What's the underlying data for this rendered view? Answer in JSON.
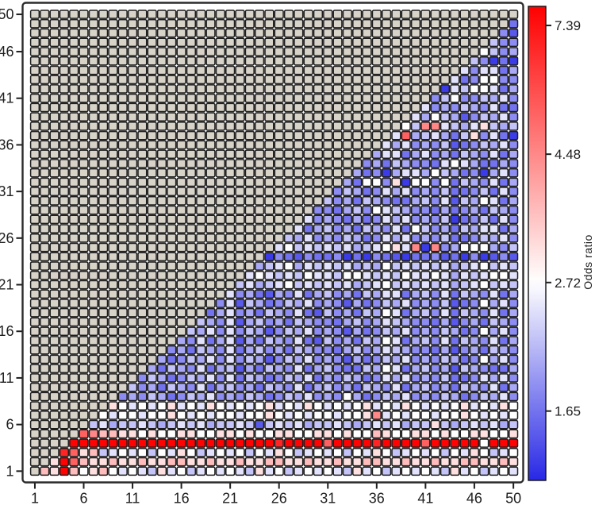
{
  "chart_data": {
    "type": "heatmap",
    "title": "",
    "xlabel": "",
    "ylabel": "",
    "colorbar_label": "Odds ratio",
    "grid_size": 50,
    "na_rule": "col<=row",
    "x_ticks": [
      1,
      6,
      11,
      16,
      21,
      26,
      31,
      36,
      41,
      46,
      50
    ],
    "y_ticks": [
      1,
      6,
      11,
      16,
      21,
      26,
      31,
      36,
      41,
      46,
      50
    ],
    "colorbar_ticks": [
      "7.39",
      "4.48",
      "2.72",
      "1.65"
    ],
    "colorbar_tick_values": [
      7.39,
      4.48,
      2.72,
      1.65
    ],
    "scale": "log",
    "center_value": 2.72,
    "vmin": 1.26,
    "vmax": 7.96,
    "colors": {
      "na_fill": "#d7d3c9",
      "cell_border": "#1e1e1e",
      "plot_border": "#2b2b2b",
      "low": "#2828e6",
      "mid": "#ffffff",
      "high": "#ff0000",
      "tick_label": "#1f1f1f"
    },
    "levels": {
      "a": 1.35,
      "b": 1.5,
      "c": 1.65,
      "d": 1.8,
      "e": 2.0,
      "f": 2.2,
      "g": 2.45,
      "h": 2.72,
      "i": 3.1,
      "j": 3.6,
      "k": 4.5,
      "l": 5.3,
      "m": 6.8,
      "n": 7.9
    },
    "textures": {
      "B1": "edfecdfegd",
      "B2": "fdecfedgce",
      "B3": "dcefdecfed",
      "L1": "hgfighfghg",
      "P": "ijiijjiiji",
      "L2": "ghfhgihfgh",
      "R": "nnnnnnnnnn",
      "P5": "ihihhiihhi",
      "F": "fgfefgfgef",
      "W": "hghhihghgh",
      "W2": "ghghighgih",
      "S": "cdbcadcbdc",
      "K": "gfgefghfgf",
      "K2": "gfghgfgfhg"
    },
    "row_textures": [
      "L1",
      "P",
      "L2",
      "R",
      "P5",
      "F",
      "W",
      "W2",
      "B1",
      "B2",
      "B1",
      "B2",
      "B1",
      "B3",
      "B2",
      "B1",
      "B3",
      "B2",
      "B1",
      "B2",
      "K",
      "K2",
      "K",
      "S",
      "K",
      "B1",
      "B2",
      "B1",
      "B3",
      "B2",
      "B1",
      "B2",
      "B1",
      "B3",
      "B2",
      "B1",
      "B2",
      "K",
      "B1",
      "B2",
      "B1",
      "B2",
      "B1",
      "B2",
      "B1",
      "K",
      "B1",
      "B2",
      "B1",
      "B1"
    ],
    "overrides": [
      [
        1,
        2,
        "j"
      ],
      [
        1,
        3,
        "i"
      ],
      [
        1,
        4,
        "n"
      ],
      [
        1,
        5,
        "j"
      ],
      [
        1,
        7,
        "i"
      ],
      [
        1,
        8,
        "j"
      ],
      [
        2,
        4,
        "n"
      ],
      [
        2,
        5,
        "l"
      ],
      [
        3,
        4,
        "m"
      ],
      [
        3,
        5,
        "l"
      ],
      [
        3,
        7,
        "j"
      ],
      [
        4,
        26,
        "m"
      ],
      [
        4,
        31,
        "l"
      ],
      [
        4,
        36,
        "m"
      ],
      [
        4,
        41,
        "l"
      ],
      [
        4,
        47,
        "h"
      ],
      [
        5,
        6,
        "l"
      ],
      [
        5,
        7,
        "k"
      ],
      [
        5,
        8,
        "j"
      ],
      [
        5,
        9,
        "j"
      ],
      [
        5,
        36,
        "j"
      ],
      [
        6,
        24,
        "b"
      ],
      [
        6,
        42,
        "i"
      ],
      [
        7,
        36,
        "k"
      ],
      [
        9,
        33,
        "h"
      ],
      [
        11,
        21,
        "g"
      ],
      [
        11,
        22,
        "c"
      ],
      [
        11,
        30,
        "c"
      ],
      [
        11,
        37,
        "g"
      ],
      [
        11,
        44,
        "c"
      ],
      [
        11,
        47,
        "g"
      ],
      [
        12,
        22,
        "b"
      ],
      [
        12,
        33,
        "c"
      ],
      [
        12,
        37,
        "h"
      ],
      [
        12,
        44,
        "b"
      ],
      [
        12,
        48,
        "c"
      ],
      [
        13,
        21,
        "g"
      ],
      [
        13,
        25,
        "b"
      ],
      [
        13,
        33,
        "b"
      ],
      [
        13,
        47,
        "h"
      ],
      [
        14,
        21,
        "g"
      ],
      [
        14,
        37,
        "g"
      ],
      [
        14,
        44,
        "b"
      ],
      [
        15,
        21,
        "g"
      ],
      [
        15,
        22,
        "b"
      ],
      [
        15,
        30,
        "b"
      ],
      [
        15,
        37,
        "h"
      ],
      [
        15,
        43,
        "g"
      ],
      [
        16,
        21,
        "g"
      ],
      [
        16,
        25,
        "b"
      ],
      [
        16,
        33,
        "b"
      ],
      [
        16,
        47,
        "h"
      ],
      [
        17,
        21,
        "g"
      ],
      [
        17,
        22,
        "b"
      ],
      [
        17,
        37,
        "g"
      ],
      [
        17,
        44,
        "b"
      ],
      [
        18,
        21,
        "g"
      ],
      [
        18,
        30,
        "b"
      ],
      [
        18,
        37,
        "h"
      ],
      [
        18,
        43,
        "g"
      ],
      [
        19,
        21,
        "g"
      ],
      [
        19,
        22,
        "b"
      ],
      [
        19,
        33,
        "b"
      ],
      [
        19,
        44,
        "b"
      ],
      [
        19,
        47,
        "h"
      ],
      [
        20,
        21,
        "g"
      ],
      [
        20,
        25,
        "b"
      ],
      [
        20,
        37,
        "g"
      ],
      [
        20,
        43,
        "g"
      ],
      [
        21,
        37,
        "h"
      ],
      [
        21,
        47,
        "h"
      ],
      [
        22,
        29,
        "h"
      ],
      [
        22,
        33,
        "h"
      ],
      [
        22,
        42,
        "h"
      ],
      [
        22,
        44,
        "e"
      ],
      [
        22,
        48,
        "h"
      ],
      [
        23,
        28,
        "e"
      ],
      [
        23,
        36,
        "e"
      ],
      [
        23,
        44,
        "e"
      ],
      [
        24,
        33,
        "a"
      ],
      [
        24,
        39,
        "a"
      ],
      [
        24,
        47,
        "a"
      ],
      [
        24,
        48,
        "b"
      ],
      [
        24,
        50,
        "b"
      ],
      [
        25,
        38,
        "i"
      ],
      [
        25,
        40,
        "k"
      ],
      [
        25,
        41,
        "a"
      ],
      [
        25,
        42,
        "k"
      ],
      [
        25,
        43,
        "d"
      ],
      [
        25,
        45,
        "h"
      ],
      [
        25,
        46,
        "h"
      ],
      [
        25,
        47,
        "h"
      ],
      [
        25,
        48,
        "e"
      ],
      [
        25,
        49,
        "d"
      ],
      [
        26,
        37,
        "g"
      ],
      [
        26,
        44,
        "c"
      ],
      [
        27,
        40,
        "h"
      ],
      [
        27,
        44,
        "c"
      ],
      [
        27,
        47,
        "g"
      ],
      [
        28,
        33,
        "c"
      ],
      [
        28,
        37,
        "g"
      ],
      [
        28,
        44,
        "a"
      ],
      [
        28,
        48,
        "c"
      ],
      [
        29,
        36,
        "h"
      ],
      [
        29,
        37,
        "g"
      ],
      [
        29,
        44,
        "c"
      ],
      [
        30,
        38,
        "c"
      ],
      [
        30,
        43,
        "g"
      ],
      [
        30,
        44,
        "b"
      ],
      [
        30,
        47,
        "h"
      ],
      [
        31,
        37,
        "g"
      ],
      [
        31,
        44,
        "c"
      ],
      [
        31,
        48,
        "c"
      ],
      [
        32,
        35,
        "h"
      ],
      [
        32,
        36,
        "h"
      ],
      [
        32,
        38,
        "i"
      ],
      [
        32,
        39,
        "a"
      ],
      [
        32,
        40,
        "h"
      ],
      [
        32,
        41,
        "h"
      ],
      [
        32,
        43,
        "h"
      ],
      [
        33,
        37,
        "a"
      ],
      [
        33,
        40,
        "g"
      ],
      [
        33,
        42,
        "h"
      ],
      [
        33,
        47,
        "a"
      ],
      [
        34,
        43,
        "g"
      ],
      [
        34,
        44,
        "h"
      ],
      [
        34,
        45,
        "g"
      ],
      [
        34,
        48,
        "c"
      ],
      [
        35,
        37,
        "g"
      ],
      [
        35,
        41,
        "g"
      ],
      [
        36,
        37,
        "g"
      ],
      [
        36,
        44,
        "b"
      ],
      [
        36,
        45,
        "c"
      ],
      [
        37,
        39,
        "l"
      ],
      [
        37,
        42,
        "g"
      ],
      [
        37,
        46,
        "i"
      ],
      [
        37,
        50,
        "a"
      ],
      [
        38,
        39,
        "h"
      ],
      [
        38,
        41,
        "k"
      ],
      [
        38,
        42,
        "k"
      ],
      [
        38,
        44,
        "f"
      ],
      [
        38,
        45,
        "e"
      ],
      [
        38,
        47,
        "i"
      ],
      [
        38,
        49,
        "e"
      ],
      [
        39,
        40,
        "g"
      ],
      [
        39,
        42,
        "h"
      ],
      [
        39,
        45,
        "b"
      ],
      [
        40,
        41,
        "g"
      ],
      [
        40,
        44,
        "d"
      ],
      [
        40,
        50,
        "c"
      ],
      [
        41,
        44,
        "h"
      ],
      [
        41,
        45,
        "d"
      ],
      [
        41,
        46,
        "d"
      ],
      [
        42,
        43,
        "a"
      ],
      [
        42,
        44,
        "g"
      ],
      [
        42,
        46,
        "h"
      ],
      [
        42,
        47,
        "h"
      ],
      [
        42,
        48,
        "g"
      ],
      [
        43,
        44,
        "g"
      ],
      [
        43,
        46,
        "d"
      ],
      [
        43,
        47,
        "h"
      ],
      [
        43,
        48,
        "h"
      ],
      [
        43,
        49,
        "d"
      ],
      [
        44,
        45,
        "g"
      ],
      [
        44,
        46,
        "d"
      ],
      [
        44,
        47,
        "g"
      ],
      [
        44,
        48,
        "g"
      ],
      [
        44,
        49,
        "c"
      ],
      [
        45,
        46,
        "f"
      ],
      [
        45,
        47,
        "d"
      ],
      [
        45,
        48,
        "a"
      ],
      [
        45,
        49,
        "c"
      ],
      [
        45,
        50,
        "a"
      ],
      [
        46,
        49,
        "d"
      ],
      [
        46,
        50,
        "e"
      ],
      [
        47,
        48,
        "f"
      ],
      [
        47,
        49,
        "d"
      ],
      [
        47,
        50,
        "d"
      ],
      [
        48,
        49,
        "d"
      ],
      [
        48,
        50,
        "b"
      ],
      [
        49,
        50,
        "c"
      ]
    ]
  }
}
